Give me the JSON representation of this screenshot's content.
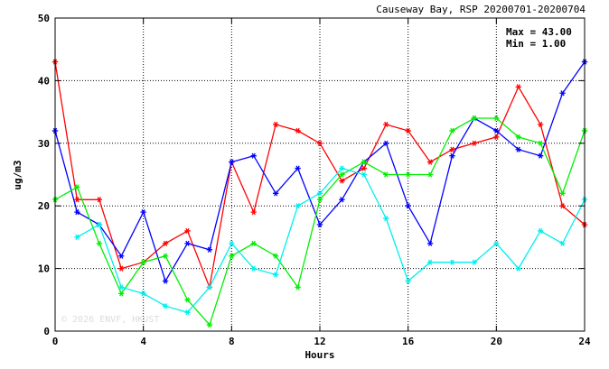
{
  "chart_data": {
    "type": "line",
    "title": "Causeway Bay, RSP 20200701-20200704",
    "xlabel": "Hours",
    "ylabel": "ug/m3",
    "xlim": [
      0,
      24
    ],
    "ylim": [
      0,
      50
    ],
    "x_ticks": [
      0,
      4,
      8,
      12,
      16,
      20,
      24
    ],
    "y_ticks": [
      0,
      10,
      20,
      30,
      40,
      50
    ],
    "grid": true,
    "stats": {
      "max": "Max = 43.00",
      "min": "Min =  1.00"
    },
    "watermark": "© 2026 ENVF, HKUST",
    "series": [
      {
        "color": "#ff0000",
        "x": [
          0,
          1,
          2,
          3,
          4,
          5,
          6,
          7,
          8,
          9,
          10,
          11,
          12,
          13,
          14,
          15,
          16,
          17,
          18,
          19,
          20,
          21,
          22,
          23,
          24
        ],
        "values": [
          43,
          21,
          21,
          10,
          11,
          14,
          16,
          7,
          27,
          19,
          33,
          32,
          30,
          24,
          26,
          33,
          32,
          27,
          29,
          30,
          31,
          39,
          33,
          20,
          17
        ]
      },
      {
        "color": "#0000ff",
        "x": [
          0,
          1,
          2,
          3,
          4,
          5,
          6,
          7,
          8,
          9,
          10,
          11,
          12,
          13,
          14,
          15,
          16,
          17,
          18,
          19,
          20,
          21,
          22,
          23,
          24
        ],
        "values": [
          32,
          19,
          17,
          12,
          19,
          8,
          14,
          13,
          27,
          28,
          22,
          26,
          17,
          21,
          27,
          30,
          20,
          14,
          28,
          34,
          32,
          29,
          28,
          38,
          43
        ]
      },
      {
        "color": "#00ee00",
        "x": [
          0,
          1,
          2,
          3,
          4,
          5,
          6,
          7,
          8,
          9,
          10,
          11,
          12,
          13,
          14,
          15,
          16,
          17,
          18,
          19,
          20,
          21,
          22,
          23,
          24
        ],
        "values": [
          21,
          23,
          14,
          6,
          11,
          12,
          5,
          1,
          12,
          14,
          12,
          7,
          21,
          25,
          27,
          25,
          25,
          25,
          32,
          34,
          34,
          31,
          30,
          22,
          32
        ]
      },
      {
        "color": "#00eeee",
        "x": [
          1,
          2,
          3,
          4,
          5,
          6,
          7,
          8,
          9,
          10,
          11,
          12,
          13,
          14,
          15,
          16,
          17,
          18,
          19,
          20,
          21,
          22,
          23,
          24
        ],
        "values": [
          15,
          17,
          7,
          6,
          4,
          3,
          7,
          14,
          10,
          9,
          20,
          22,
          26,
          25,
          18,
          8,
          11,
          11,
          11,
          14,
          10,
          16,
          14,
          21
        ]
      }
    ]
  }
}
